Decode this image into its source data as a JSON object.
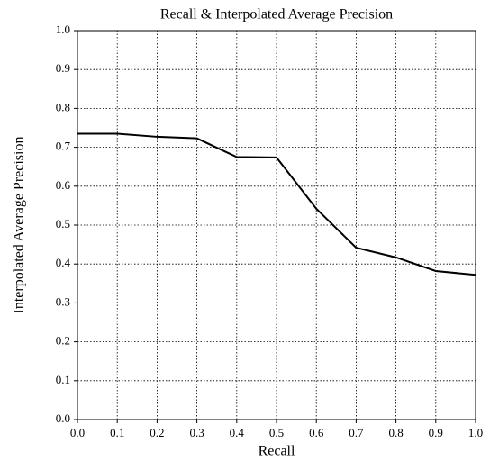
{
  "chart_data": {
    "type": "line",
    "title": "Recall & Interpolated Average Precision",
    "x_label": "Recall",
    "y_label": "Interpolated Average Precision",
    "x": [
      0,
      0.1,
      0.2,
      0.3,
      0.4,
      0.5,
      0.6,
      0.7,
      0.8,
      0.9,
      1
    ],
    "values": [
      0.735,
      0.735,
      0.727,
      0.723,
      0.675,
      0.674,
      0.542,
      0.442,
      0.417,
      0.382,
      0.372
    ],
    "color": "#000000",
    "xlim": [
      0,
      1
    ],
    "ylim": [
      0,
      1
    ],
    "xticks": [
      {
        "value": 0,
        "label": "0.0"
      },
      0.1,
      0.2,
      0.3,
      0.4,
      0.5,
      0.6,
      0.7,
      0.8,
      0.9,
      {
        "value": 1,
        "label": "1.0"
      }
    ],
    "yticks": [
      {
        "value": 0,
        "label": "0.0"
      },
      0.1,
      0.2,
      0.3,
      0.4,
      0.5,
      0.6,
      0.7,
      0.8,
      0.9,
      {
        "value": 1,
        "label": "1.0"
      }
    ],
    "grid": true
  }
}
